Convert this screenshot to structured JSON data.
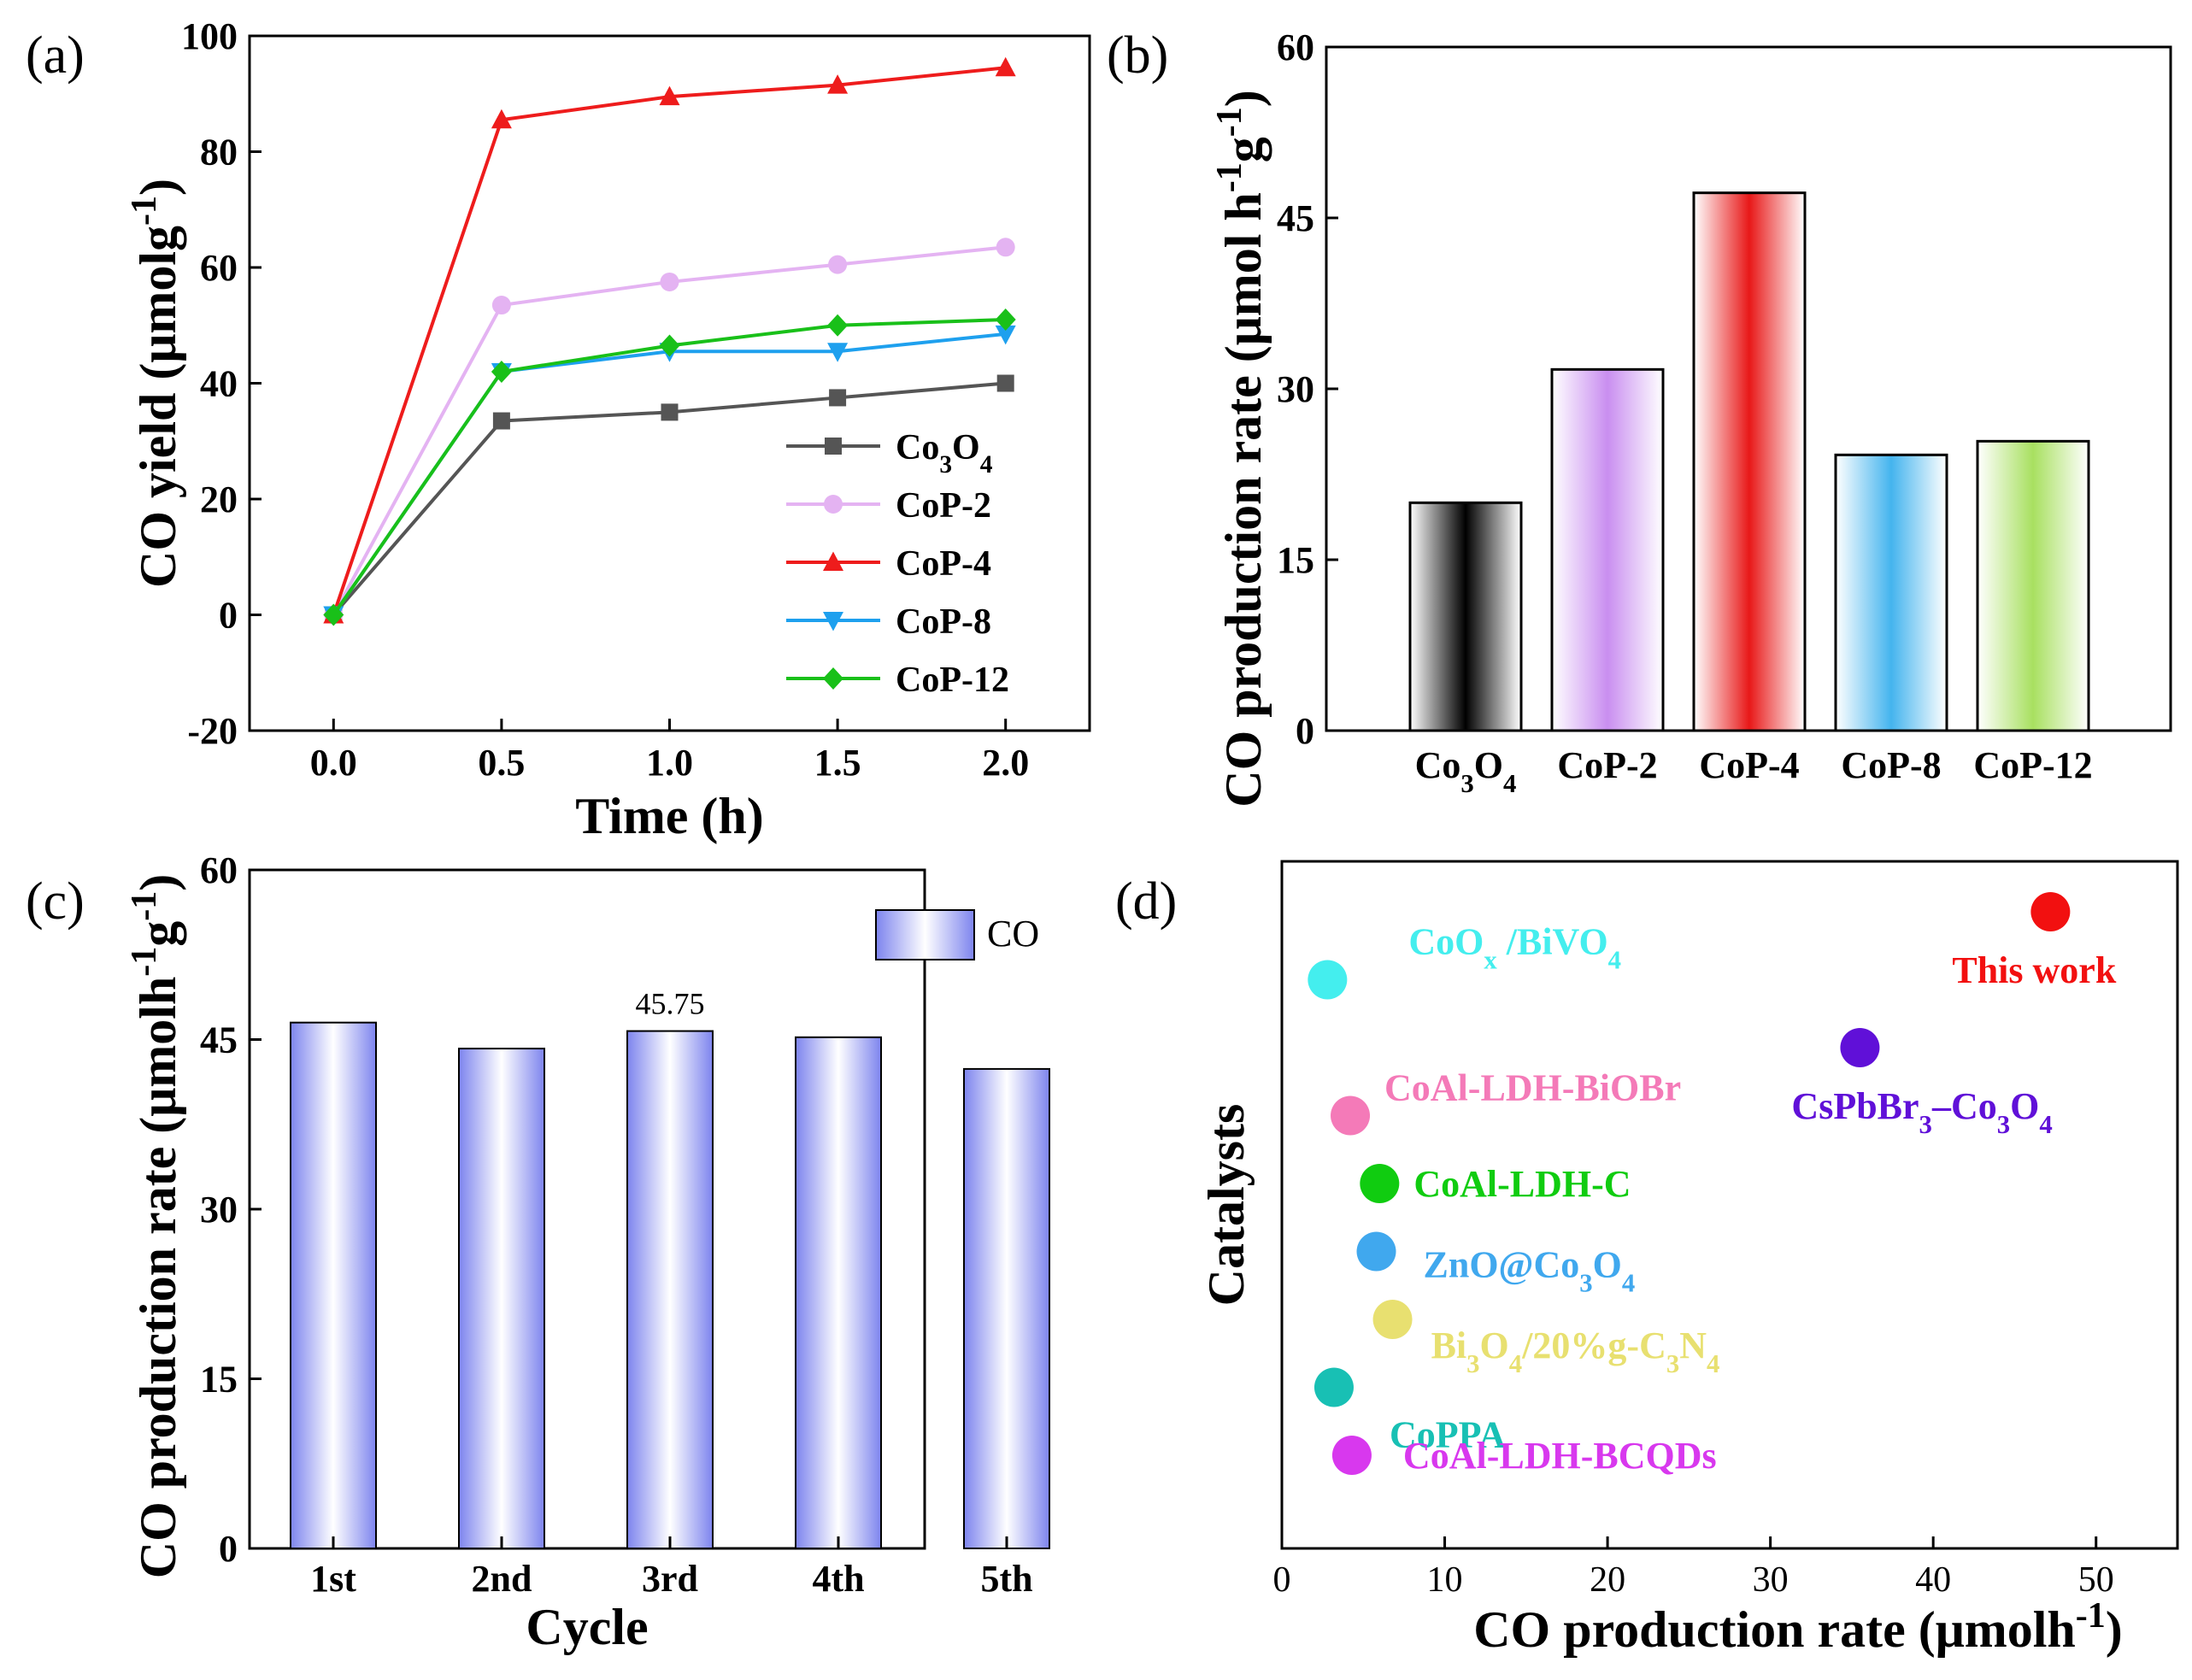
{
  "panels": {
    "a": "(a)",
    "b": "(b)",
    "c": "(c)",
    "d": "(d)"
  },
  "chart_data": [
    {
      "id": "a",
      "type": "line",
      "xlabel": "Time (h)",
      "ylabel": "CO yield (μmolg",
      "ylabel_sup": "-1",
      "ylabel_end": ")",
      "xlim": [
        -0.25,
        2.25
      ],
      "ylim": [
        -20,
        100
      ],
      "xticks": [
        "0.0",
        "0.5",
        "1.0",
        "1.5",
        "2.0"
      ],
      "yticks": [
        "-20",
        "0",
        "20",
        "40",
        "60",
        "80",
        "100"
      ],
      "x": [
        0,
        0.5,
        1.0,
        1.5,
        2.0
      ],
      "series": [
        {
          "name": "Co",
          "sub": "3",
          "mid": "O",
          "sub2": "4",
          "color": "#555555",
          "marker": "square",
          "values": [
            0,
            33.5,
            35,
            37.5,
            40
          ]
        },
        {
          "name": "CoP-2",
          "color": "#e4b3f2",
          "marker": "circle",
          "values": [
            0,
            53.5,
            57.5,
            60.5,
            63.5
          ]
        },
        {
          "name": "CoP-4",
          "color": "#ee1c1c",
          "marker": "triangle",
          "values": [
            0,
            85.5,
            89.5,
            91.5,
            94.5
          ]
        },
        {
          "name": "CoP-8",
          "color": "#1ea0ee",
          "marker": "triangle-down",
          "values": [
            0,
            42,
            45.5,
            45.5,
            48.5
          ]
        },
        {
          "name": "CoP-12",
          "color": "#19c019",
          "marker": "diamond",
          "values": [
            0,
            42,
            46.5,
            50,
            51
          ]
        }
      ]
    },
    {
      "id": "b",
      "type": "bar",
      "ylabel": "CO production rate  (μmol h",
      "ylabel_sup1": "-1",
      "ylabel_mid": "g",
      "ylabel_sup2": "-1",
      "ylabel_end": ")",
      "ylim": [
        0,
        60
      ],
      "yticks": [
        "0",
        "15",
        "30",
        "45",
        "60"
      ],
      "categories": [
        "Co3O4",
        "CoP-2",
        "CoP-4",
        "CoP-8",
        "CoP-12"
      ],
      "cat_labels": [
        {
          "a": "Co",
          "s1": "3",
          "b": "O",
          "s2": "4"
        },
        {
          "a": "CoP-2"
        },
        {
          "a": "CoP-4"
        },
        {
          "a": "CoP-8"
        },
        {
          "a": "CoP-12"
        }
      ],
      "values": [
        20,
        31.7,
        47.2,
        24.2,
        25.4
      ],
      "colors": [
        "#000000",
        "#c98ef0",
        "#e81818",
        "#44b4ee",
        "#a8e060"
      ]
    },
    {
      "id": "c",
      "type": "bar",
      "xlabel": "Cycle",
      "ylabel": "CO production rate (μmolh",
      "ylabel_sup1": "-1",
      "ylabel_mid": "g",
      "ylabel_sup2": "-1",
      "ylabel_end": ")",
      "ylim": [
        0,
        60
      ],
      "yticks": [
        "0",
        "15",
        "30",
        "45",
        "60"
      ],
      "categories": [
        "1st",
        "2nd",
        "3rd",
        "4th",
        "5th"
      ],
      "values": [
        46.5,
        44.2,
        45.75,
        45.2,
        42.4
      ],
      "annotation": {
        "index": 2,
        "text": "45.75"
      },
      "legend": "CO",
      "color": "#8f95ee"
    },
    {
      "id": "d",
      "type": "scatter",
      "xlabel": "CO production rate (μmolh",
      "xlabel_sup": "-1",
      "xlabel_end": ")",
      "ylabel": "Catalysts",
      "xlim": [
        0,
        55
      ],
      "xticks": [
        "0",
        "10",
        "20",
        "30",
        "40",
        "50"
      ],
      "points": [
        {
          "label": "This work",
          "x": 47.2,
          "rank": 10,
          "color": "#f21010",
          "lcolor": "#f21010"
        },
        {
          "label": "CoOx /BiVO4",
          "x": 2.8,
          "rank": 9,
          "color": "#44eeee",
          "lcolor": "#44eeee"
        },
        {
          "label": "CsPbBr3–Co3O4",
          "x": 35.5,
          "rank": 8,
          "color": "#6010d8",
          "lcolor": "#6010d8"
        },
        {
          "label": "CoAl-LDH-BiOBr",
          "x": 4.2,
          "rank": 7,
          "color": "#f47ab8",
          "lcolor": "#f47ab8"
        },
        {
          "label": "CoAl-LDH-C",
          "x": 6.0,
          "rank": 6,
          "color": "#10cc10",
          "lcolor": "#10cc10"
        },
        {
          "label": "ZnO@Co3O4",
          "x": 5.8,
          "rank": 5,
          "color": "#40a8ee",
          "lcolor": "#40a8ee"
        },
        {
          "label": "Bi3O4/20%g-C3N4",
          "x": 6.8,
          "rank": 4,
          "color": "#e8e070",
          "lcolor": "#e8e070"
        },
        {
          "label": "CoPPA",
          "x": 3.2,
          "rank": 3,
          "color": "#18c0b4",
          "lcolor": "#18c0b4"
        },
        {
          "label": "CoAl-LDH-BCQDs",
          "x": 4.3,
          "rank": 2,
          "color": "#d838ee",
          "lcolor": "#d838ee"
        }
      ],
      "rich_labels": {
        "CoOx /BiVO4": [
          [
            "CoO",
            ""
          ],
          [
            "x",
            "sub"
          ],
          [
            " /BiVO",
            ""
          ],
          [
            "4",
            "sub"
          ]
        ],
        "CsPbBr3–Co3O4": [
          [
            "CsPbBr",
            ""
          ],
          [
            "3",
            "sub"
          ],
          [
            "–Co",
            ""
          ],
          [
            "3",
            "sub"
          ],
          [
            "O",
            ""
          ],
          [
            "4",
            "sub"
          ]
        ],
        "ZnO@Co3O4": [
          [
            "ZnO@Co",
            ""
          ],
          [
            "3",
            "sub"
          ],
          [
            "O",
            ""
          ],
          [
            "4",
            "sub"
          ]
        ],
        "Bi3O4/20%g-C3N4": [
          [
            "Bi",
            ""
          ],
          [
            "3",
            "sub"
          ],
          [
            "O",
            ""
          ],
          [
            "4",
            "sub"
          ],
          [
            "/20%g-C",
            ""
          ],
          [
            "3",
            "sub"
          ],
          [
            "N",
            ""
          ],
          [
            "4",
            "sub"
          ]
        ]
      }
    }
  ]
}
